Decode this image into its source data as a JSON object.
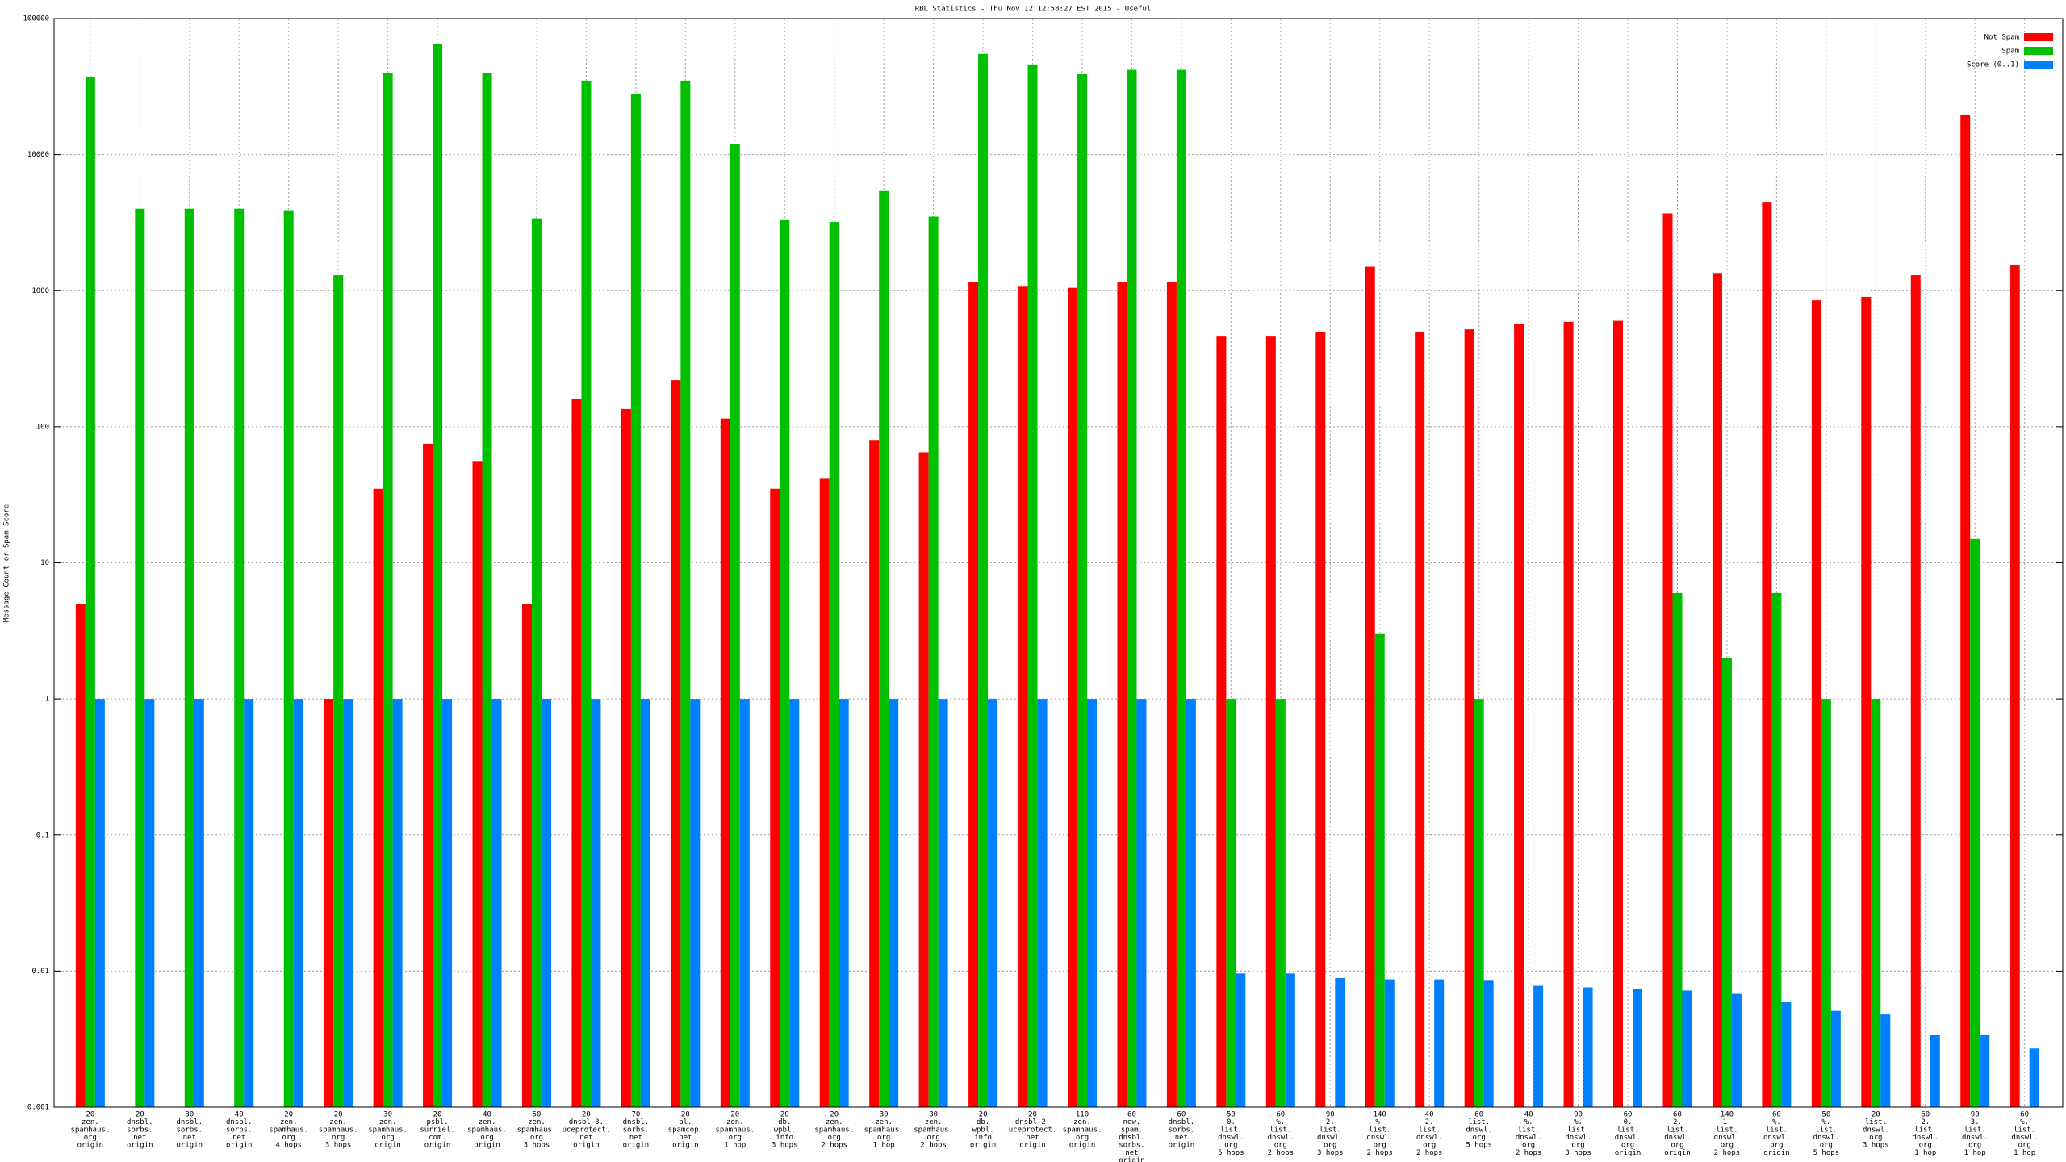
{
  "chart_data": {
    "type": "bar",
    "title": "RBL Statistics - Thu Nov 12 12:58:27 EST 2015 - Useful",
    "y_label": "Message Count or Spam Score",
    "log_scale": true,
    "grid": true,
    "legend": "top-right",
    "ylim": [
      0.001,
      100000
    ],
    "yticks": [
      0.001,
      0.01,
      0.1,
      1,
      10,
      100,
      1000,
      10000,
      100000
    ],
    "categories": [
      [
        "20",
        "zen.",
        "spamhaus.",
        "org",
        "origin"
      ],
      [
        "20",
        "dnsbl.",
        "sorbs.",
        "net",
        "origin"
      ],
      [
        "30",
        "dnsbl.",
        "sorbs.",
        "net",
        "origin"
      ],
      [
        "40",
        "dnsbl.",
        "sorbs.",
        "net",
        "origin"
      ],
      [
        "20",
        "zen.",
        "spamhaus.",
        "org",
        "4 hops"
      ],
      [
        "20",
        "zen.",
        "spamhaus.",
        "org",
        "3 hops"
      ],
      [
        "30",
        "zen.",
        "spamhaus.",
        "org",
        "origin"
      ],
      [
        "20",
        "psbl.",
        "surriel.",
        "com.",
        "origin"
      ],
      [
        "40",
        "zen.",
        "spamhaus.",
        "org",
        "origin"
      ],
      [
        "50",
        "zen.",
        "spamhaus.",
        "org",
        "3 hops"
      ],
      [
        "20",
        "dnsbl-3.",
        "uceprotect.",
        "net",
        "origin"
      ],
      [
        "70",
        "dnsbl.",
        "sorbs.",
        "net",
        "origin"
      ],
      [
        "20",
        "bl.",
        "spamcop.",
        "net",
        "origin"
      ],
      [
        "20",
        "zen.",
        "spamhaus.",
        "org",
        "1 hop"
      ],
      [
        "20",
        "db.",
        "wpbl.",
        "info",
        "3 hops"
      ],
      [
        "20",
        "zen.",
        "spamhaus.",
        "org",
        "2 hops"
      ],
      [
        "30",
        "zen.",
        "spamhaus.",
        "org",
        "1 hop"
      ],
      [
        "30",
        "zen.",
        "spamhaus.",
        "org",
        "2 hops"
      ],
      [
        "20",
        "db.",
        "wpbl.",
        "info",
        "origin"
      ],
      [
        "20",
        "dnsbl-2.",
        "uceprotect.",
        "net",
        "origin"
      ],
      [
        "110",
        "zen.",
        "spamhaus.",
        "org",
        "origin"
      ],
      [
        "60",
        "new.",
        "spam.",
        "dnsbl.",
        "sorbs.",
        "net",
        "origin"
      ],
      [
        "60",
        "dnsbl.",
        "sorbs.",
        "net",
        "origin"
      ],
      [
        "50",
        "0.",
        "list.",
        "dnswl.",
        "org",
        "5 hops"
      ],
      [
        "60",
        "%.",
        "list.",
        "dnswl.",
        "org",
        "2 hops"
      ],
      [
        "90",
        "2.",
        "list.",
        "dnswl.",
        "org",
        "3 hops"
      ],
      [
        "140",
        "%.",
        "list.",
        "dnswl.",
        "org",
        "2 hops"
      ],
      [
        "40",
        "2.",
        "list.",
        "dnswl.",
        "org",
        "2 hops"
      ],
      [
        "60",
        "list.",
        "dnswl.",
        "org",
        "5 hops"
      ],
      [
        "40",
        "%.",
        "list.",
        "dnswl.",
        "org",
        "2 hops"
      ],
      [
        "90",
        "%.",
        "list.",
        "dnswl.",
        "org",
        "3 hops"
      ],
      [
        "60",
        "0.",
        "list.",
        "dnswl.",
        "org",
        "origin"
      ],
      [
        "60",
        "2.",
        "list.",
        "dnswl.",
        "org",
        "origin"
      ],
      [
        "140",
        "1.",
        "list.",
        "dnswl.",
        "org",
        "2 hops"
      ],
      [
        "60",
        "%.",
        "list.",
        "dnswl.",
        "org",
        "origin"
      ],
      [
        "50",
        "%.",
        "list.",
        "dnswl.",
        "org",
        "5 hops"
      ],
      [
        "20",
        "list.",
        "dnswl.",
        "org",
        "3 hops"
      ],
      [
        "60",
        "2.",
        "list.",
        "dnswl.",
        "org",
        "1 hop"
      ],
      [
        "90",
        "3.",
        "list.",
        "dnswl.",
        "org",
        "1 hop"
      ],
      [
        "60",
        "%.",
        "list.",
        "dnswl.",
        "org",
        "1 hop"
      ]
    ],
    "series": [
      {
        "name": "Not Spam",
        "color": "#ff0000",
        "values": [
          5,
          null,
          null,
          null,
          null,
          1,
          35,
          75,
          56,
          5,
          160,
          135,
          220,
          115,
          35,
          42,
          80,
          65,
          1150,
          1070,
          1050,
          1150,
          1150,
          460,
          460,
          500,
          1500,
          500,
          520,
          570,
          590,
          600,
          3700,
          1350,
          4500,
          850,
          900,
          1300,
          19500,
          1550
        ]
      },
      {
        "name": "Spam",
        "color": "#00c000",
        "values": [
          37000,
          4000,
          4000,
          4000,
          3900,
          1300,
          40000,
          65000,
          40000,
          3400,
          35000,
          28000,
          35000,
          12000,
          3300,
          3200,
          5400,
          3500,
          55000,
          46000,
          39000,
          42000,
          42000,
          1,
          1,
          null,
          3,
          null,
          1,
          null,
          null,
          null,
          6,
          2,
          6,
          1,
          1,
          null,
          15,
          null
        ]
      },
      {
        "name": "Score (0..1)",
        "color": "#0080ff",
        "values": [
          1,
          1,
          1,
          1,
          1,
          1,
          1,
          1,
          1,
          1,
          1,
          1,
          1,
          1,
          1,
          1,
          1,
          1,
          1,
          1,
          1,
          1,
          1,
          0.0096,
          0.0096,
          0.0089,
          0.0087,
          0.0087,
          0.0085,
          0.0078,
          0.0076,
          0.0074,
          0.0072,
          0.0068,
          0.0059,
          0.0051,
          0.0048,
          0.0034,
          0.0034,
          0.0027
        ]
      }
    ]
  }
}
